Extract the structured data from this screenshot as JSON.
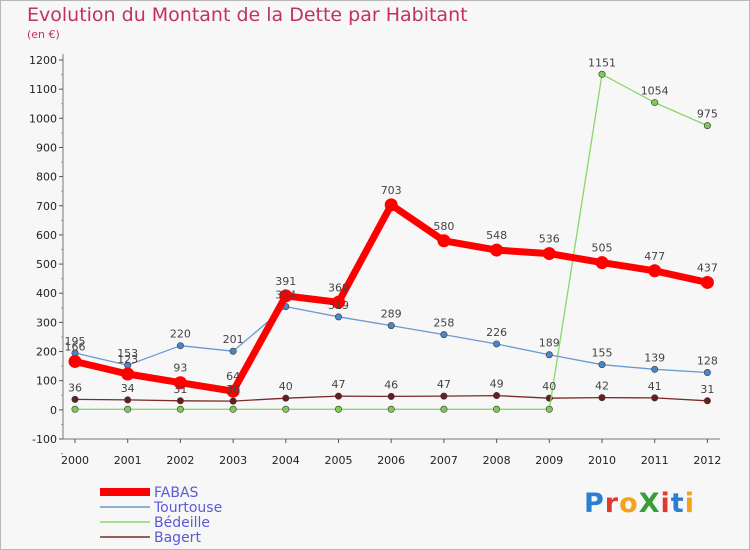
{
  "title": "Evolution du Montant de la Dette par Habitant",
  "subtitle": "(en €)",
  "logo": {
    "text": "ProXiti",
    "letter_colors": [
      "#2a7fd4",
      "#e03a2f",
      "#f2a21b",
      "#3a9d3a",
      "#e03a2f",
      "#2a7fd4",
      "#f2a21b"
    ]
  },
  "chart_data": {
    "type": "line",
    "categories": [
      "2000",
      "2001",
      "2002",
      "2003",
      "2004",
      "2005",
      "2006",
      "2007",
      "2008",
      "2009",
      "2010",
      "2011",
      "2012"
    ],
    "ylim": [
      -100,
      1200
    ],
    "yticks": [
      -100,
      0,
      100,
      200,
      300,
      400,
      500,
      600,
      700,
      800,
      900,
      1000,
      1100,
      1200
    ],
    "grid": false,
    "legend": "bottom-left",
    "series": [
      {
        "name": "Bagert",
        "color": "#7a2a2a",
        "width": 1.3,
        "marker_color": "#6a1d1d",
        "values": [
          36,
          34,
          31,
          30,
          40,
          47,
          46,
          47,
          49,
          40,
          42,
          41,
          31
        ],
        "labels": [
          "36",
          "34",
          "31",
          "30",
          "40",
          "47",
          "46",
          "47",
          "49",
          "40",
          "42",
          "41",
          "31"
        ]
      },
      {
        "name": "Bédeille",
        "color": "#88d86a",
        "width": 1.3,
        "marker_color": "#7ccc50",
        "values": [
          2,
          2,
          2,
          2,
          2,
          2,
          2,
          2,
          2,
          2,
          1151,
          1054,
          975
        ],
        "labels": [
          "",
          "",
          "",
          "",
          "",
          "",
          "",
          "",
          "",
          "",
          "1151",
          "1054",
          "975"
        ]
      },
      {
        "name": "Tourtouse",
        "color": "#6a9ad2",
        "width": 1.3,
        "marker_color": "#4a86c8",
        "values": [
          195,
          153,
          220,
          201,
          354,
          319,
          289,
          258,
          226,
          189,
          155,
          139,
          128
        ],
        "labels": [
          "195",
          "153",
          "220",
          "201",
          "354",
          "319",
          "289",
          "258",
          "226",
          "189",
          "155",
          "139",
          "128"
        ]
      },
      {
        "name": "FABAS",
        "color": "#ff0000",
        "width": 7,
        "marker_color": "#ff0000",
        "values": [
          166,
          123,
          93,
          64,
          391,
          369,
          703,
          580,
          548,
          536,
          505,
          477,
          437
        ],
        "labels": [
          "166",
          "123",
          "93",
          "64",
          "391",
          "369",
          "703",
          "580",
          "548",
          "536",
          "505",
          "477",
          "437"
        ]
      }
    ],
    "legend_order": [
      "FABAS",
      "Tourtouse",
      "Bédeille",
      "Bagert"
    ]
  }
}
